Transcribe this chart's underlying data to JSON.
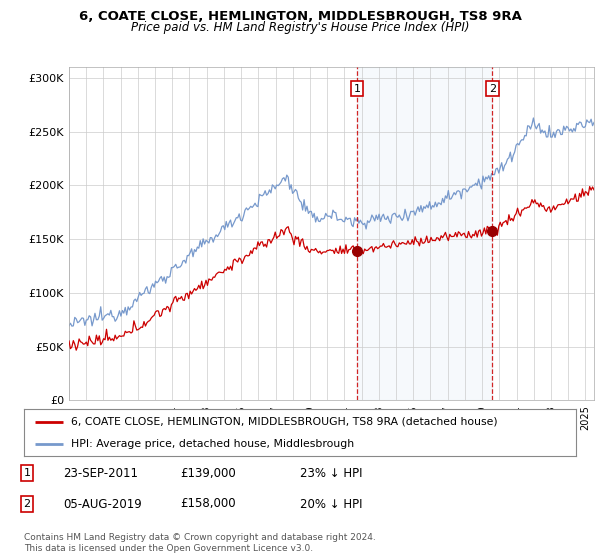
{
  "title1": "6, COATE CLOSE, HEMLINGTON, MIDDLESBROUGH, TS8 9RA",
  "title2": "Price paid vs. HM Land Registry's House Price Index (HPI)",
  "ylabel_ticks": [
    "£0",
    "£50K",
    "£100K",
    "£150K",
    "£200K",
    "£250K",
    "£300K"
  ],
  "ytick_values": [
    0,
    50000,
    100000,
    150000,
    200000,
    250000,
    300000
  ],
  "ylim": [
    0,
    310000
  ],
  "background_color": "#ffffff",
  "plot_bg_color": "#ffffff",
  "grid_color": "#cccccc",
  "red_color": "#cc0000",
  "blue_color": "#7799cc",
  "shade_color": "#dce8f5",
  "marker1_x": 2011.73,
  "marker1_price": 139000,
  "marker2_x": 2019.59,
  "marker2_price": 158000,
  "legend_label_red": "6, COATE CLOSE, HEMLINGTON, MIDDLESBROUGH, TS8 9RA (detached house)",
  "legend_label_blue": "HPI: Average price, detached house, Middlesbrough",
  "ann1_date": "23-SEP-2011",
  "ann1_price": "£139,000",
  "ann1_hpi": "23% ↓ HPI",
  "ann2_date": "05-AUG-2019",
  "ann2_price": "£158,000",
  "ann2_hpi": "20% ↓ HPI",
  "footnote": "Contains HM Land Registry data © Crown copyright and database right 2024.\nThis data is licensed under the Open Government Licence v3.0.",
  "xmin": 1995.0,
  "xmax": 2025.5
}
